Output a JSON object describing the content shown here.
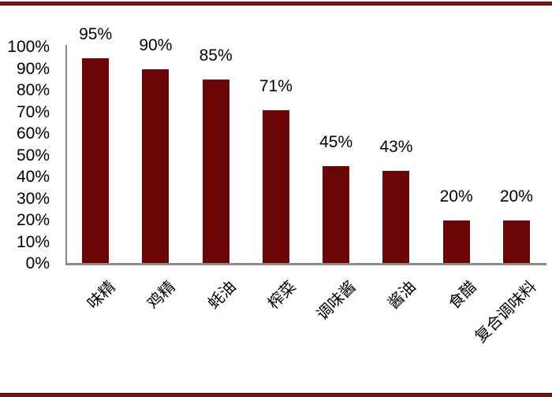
{
  "page": {
    "background_color": "#FFFFFF"
  },
  "decor": {
    "top_rule_color": "#7E1113",
    "rule_edge_color": "#2E0506",
    "bottom_rule_color": "#7E1113"
  },
  "chart_data": {
    "type": "bar",
    "title": "",
    "categories": [
      "味精",
      "鸡精",
      "蚝油",
      "榨菜",
      "调味酱",
      "酱油",
      "食醋",
      "复合调味料"
    ],
    "values": [
      95,
      90,
      85,
      71,
      45,
      43,
      20,
      20
    ],
    "data_labels": [
      "95%",
      "90%",
      "85%",
      "71%",
      "45%",
      "43%",
      "20%",
      "20%"
    ],
    "y_ticks": [
      {
        "value": 100,
        "label": "100%"
      },
      {
        "value": 90,
        "label": "90%"
      },
      {
        "value": 80,
        "label": "80%"
      },
      {
        "value": 70,
        "label": "70%"
      },
      {
        "value": 60,
        "label": "60%"
      },
      {
        "value": 50,
        "label": "50%"
      },
      {
        "value": 40,
        "label": "40%"
      },
      {
        "value": 30,
        "label": "30%"
      },
      {
        "value": 20,
        "label": "20%"
      },
      {
        "value": 10,
        "label": "10%"
      },
      {
        "value": 0,
        "label": "0%"
      }
    ],
    "ylim": [
      0,
      100
    ],
    "xlabel": "",
    "ylabel": "",
    "grid": false,
    "legend": false,
    "bar_color": "#6A0505",
    "axis_color": "#8C8C8C",
    "text_color": "#000000"
  }
}
